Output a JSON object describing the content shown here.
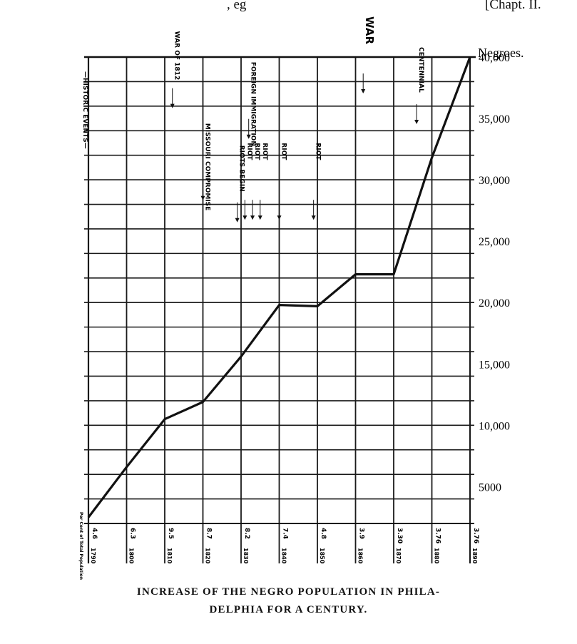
{
  "page": {
    "top_left_fragment": "",
    "top_mid_fragment": ", eg",
    "top_right_fragment": "[Chapt. II.",
    "bottom_fragment": "",
    "caption_line1": "INCREASE OF THE NEGRO POPULATION IN PHILA-",
    "caption_line2": "DELPHIA FOR A CENTURY."
  },
  "chart_data": {
    "type": "line",
    "title": "INCREASE OF THE NEGRO POPULATION IN PHILADELPHIA FOR A CENTURY.",
    "ylabel": "Negroes.",
    "xlabel": "",
    "x": [
      "1790",
      "1800",
      "1810",
      "1820",
      "1830",
      "1840",
      "1850",
      "1860",
      "1870",
      "1880",
      "1890"
    ],
    "ylim": [
      2000,
      40000
    ],
    "yticks": [
      5000,
      10000,
      15000,
      20000,
      25000,
      30000,
      35000,
      40000
    ],
    "ytick_labels": [
      "5000",
      "10,000",
      "15,000",
      "20,000",
      "25,000",
      "30,000",
      "35,000",
      "40,000"
    ],
    "series": [
      {
        "values": [
          2500,
          6600,
          10500,
          11900,
          15600,
          19800,
          19700,
          22300,
          22300,
          31800,
          40000
        ]
      }
    ],
    "percent_label_caption": "Per Cent of Total Population",
    "percent_labels": [
      "4.6",
      "6.3",
      "9.5",
      "8.7",
      "8.2",
      "7.4",
      "4.8",
      "3.9",
      "3.30",
      "3.76",
      "3.76"
    ],
    "left_axis_label": "—HISTORIC EVENTS—",
    "events": [
      {
        "label": "WAR OF 1812",
        "x": 1812,
        "y": 36300
      },
      {
        "label": "MISSOURI COMPROMISE",
        "x": 1820,
        "y": 28800
      },
      {
        "label": "FOREIGN IMMIGRATION",
        "x": 1832,
        "y": 33800
      },
      {
        "label": "RIOTS BEGIN",
        "x": 1829,
        "y": 27000
      },
      {
        "label": "RIOT",
        "x": 1831,
        "y": 27200
      },
      {
        "label": "RIOT",
        "x": 1833,
        "y": 27200
      },
      {
        "label": "RIOT",
        "x": 1835,
        "y": 27200
      },
      {
        "label": "RIOT",
        "x": 1840,
        "y": 27200
      },
      {
        "label": "RIOT",
        "x": 1849,
        "y": 27200
      },
      {
        "label": "WAR",
        "x": 1862,
        "y": 37500
      },
      {
        "label": "CENTENNIAL",
        "x": 1876,
        "y": 35000
      }
    ],
    "grid": true
  }
}
